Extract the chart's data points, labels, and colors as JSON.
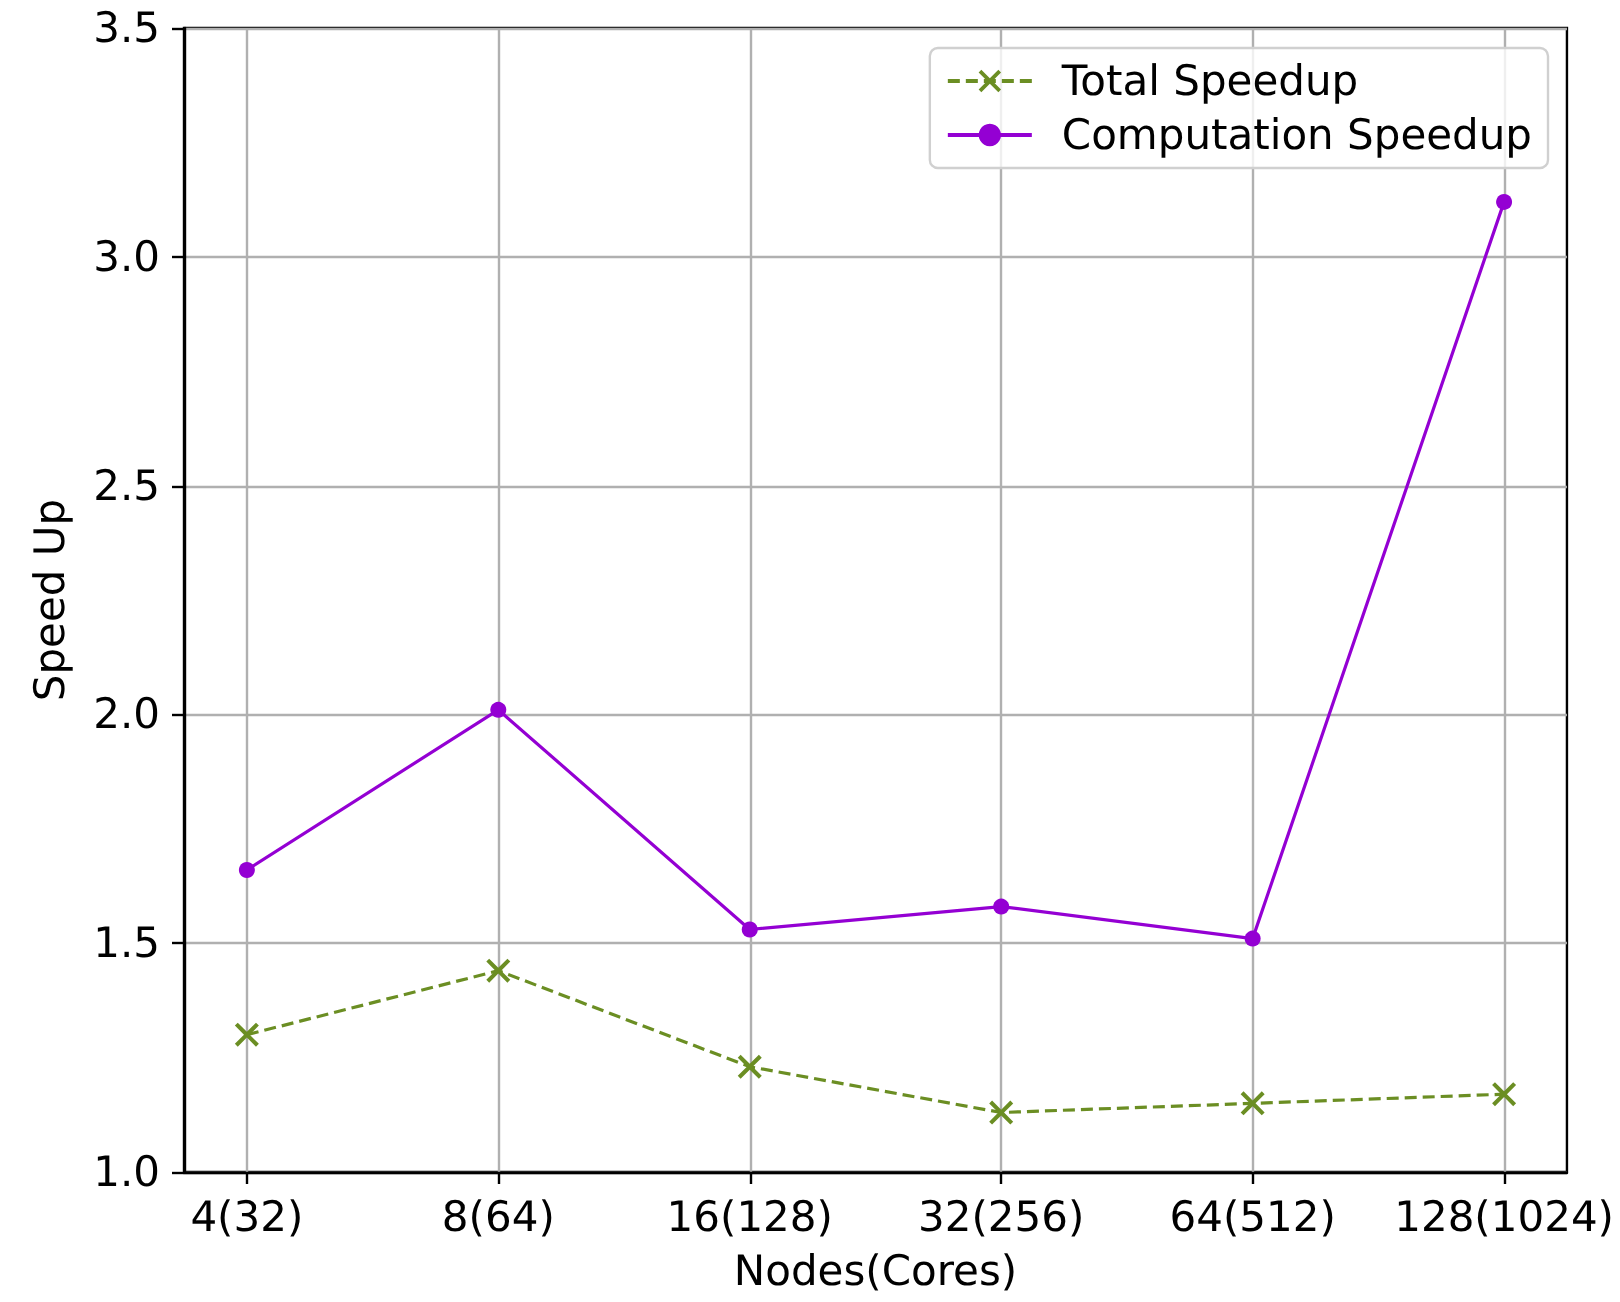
{
  "chart_data": {
    "type": "line",
    "xlabel": "Nodes(Cores)",
    "ylabel": "Speed Up",
    "categories": [
      "4(32)",
      "8(64)",
      "16(128)",
      "32(256)",
      "64(512)",
      "128(1024)"
    ],
    "series": [
      {
        "name": "Total Speedup",
        "color": "#6b8e23",
        "values": [
          1.3,
          1.44,
          1.23,
          1.13,
          1.15,
          1.17
        ],
        "marker": "cross",
        "line_style": "dashed"
      },
      {
        "name": "Computation Speedup",
        "color": "#9400d3",
        "values": [
          1.66,
          2.01,
          1.53,
          1.58,
          1.51,
          3.12
        ],
        "marker": "circle",
        "line_style": "solid"
      }
    ],
    "ylim": [
      1,
      3.5
    ],
    "yticks": [
      {
        "value": 1,
        "label": "1.0"
      },
      {
        "value": 1.5,
        "label": "1.5"
      },
      {
        "value": 2,
        "label": "2.0"
      },
      {
        "value": 2.5,
        "label": "2.5"
      },
      {
        "value": 3,
        "label": "3.0"
      },
      {
        "value": 3.5,
        "label": "3.5"
      }
    ],
    "grid": true,
    "legend": "top right"
  }
}
